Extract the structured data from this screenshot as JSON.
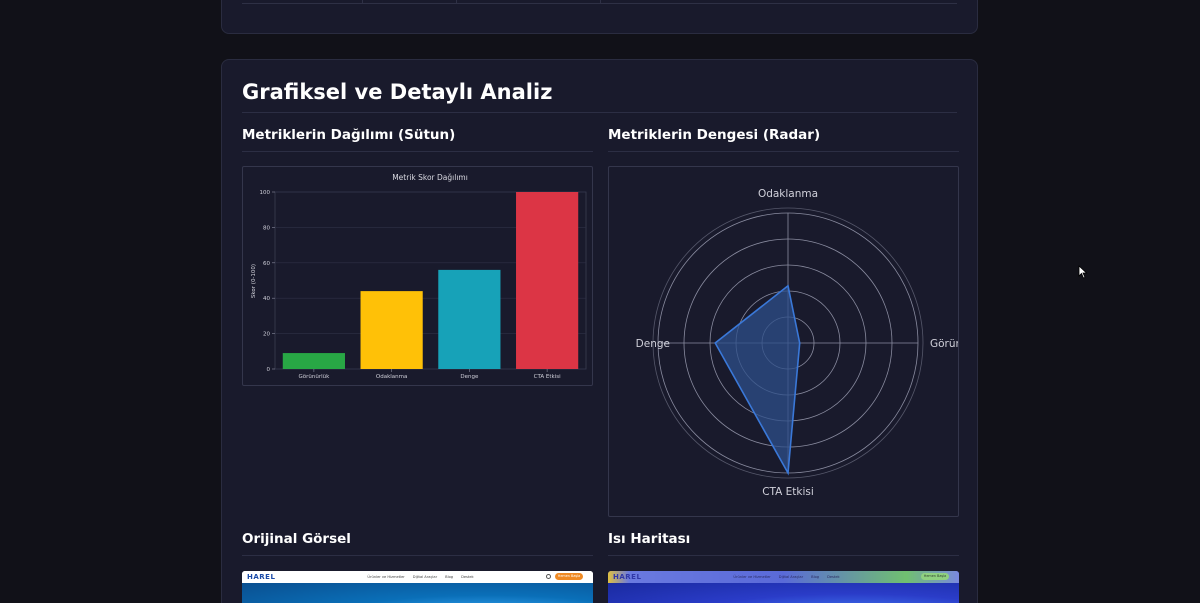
{
  "section": {
    "title": "Grafiksel ve Detaylı Analiz"
  },
  "bar_panel": {
    "heading": "Metriklerin Dağılımı (Sütun)"
  },
  "radar_panel": {
    "heading": "Metriklerin Dengesi (Radar)"
  },
  "original_panel": {
    "heading": "Orijinal Görsel"
  },
  "heatmap_panel": {
    "heading": "Isı Haritası"
  },
  "chart_data": [
    {
      "type": "bar",
      "title": "Metrik Skor Dağılımı",
      "xlabel": "",
      "ylabel": "Skor (0-100)",
      "categories": [
        "Görünürlük",
        "Odaklanma",
        "Denge",
        "CTA Etkisi"
      ],
      "values": [
        9,
        44,
        56,
        100
      ],
      "colors": [
        "#28a745",
        "#ffc107",
        "#17a2b8",
        "#dc3545"
      ],
      "ylim": [
        0,
        100
      ],
      "yticks": [
        0,
        20,
        40,
        60,
        80,
        100
      ],
      "grid": true
    },
    {
      "type": "radar",
      "axes": [
        "Görünürlük",
        "Odaklanma",
        "Denge",
        "CTA Etkisi"
      ],
      "values": [
        9,
        44,
        56,
        100
      ],
      "rmax": 100,
      "rings": [
        20,
        40,
        60,
        80,
        100
      ],
      "color": "#3a78d8",
      "fill": "#2e4f8a"
    }
  ],
  "thumbnails": {
    "original": {
      "logo": "HAREL",
      "nav": [
        "Ürünler ve Hizmetler",
        "Dijital Araçlar",
        "Blog",
        "Destek"
      ],
      "cta": "Hemen Başla",
      "logo_color": "#1a4aa8",
      "cta_color": "#f08a24",
      "hero_color": "#0a6fb8"
    },
    "heatmap": {
      "logo": "HAREL",
      "nav": [
        "Ürünler ve Hizmetler",
        "Dijital Araçlar",
        "Blog",
        "Destek"
      ],
      "cta": "Hemen Başla",
      "hero_color": "#2a3cc8"
    }
  }
}
